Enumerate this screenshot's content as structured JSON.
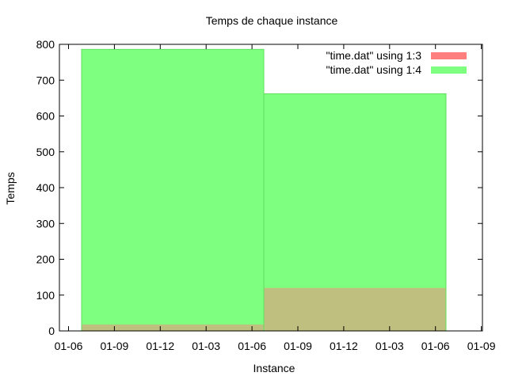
{
  "chart_data": {
    "type": "bar",
    "title": "Temps de chaque instance",
    "xlabel": "Instance",
    "ylabel": "Temps",
    "ylim": [
      0,
      800
    ],
    "yticks": [
      0,
      100,
      200,
      300,
      400,
      500,
      600,
      700,
      800
    ],
    "xticks": [
      "01-06",
      "01-09",
      "01-12",
      "01-03",
      "01-06",
      "01-09",
      "01-12",
      "01-03",
      "01-06",
      "01-09"
    ],
    "grid": false,
    "legend_position": "top-right",
    "bars": [
      {
        "x_start": "01-07",
        "x_end": "01-07",
        "values": [
          18,
          786
        ]
      },
      {
        "x_start": "01-07",
        "x_end": "01-07",
        "values": [
          120,
          662
        ]
      }
    ],
    "series": [
      {
        "name": "\"time.dat\" using 1:3",
        "color": "#ff7f7f",
        "values": [
          18,
          120
        ]
      },
      {
        "name": "\"time.dat\" using 1:4",
        "color": "#7fff7f",
        "values": [
          786,
          662
        ]
      }
    ]
  }
}
